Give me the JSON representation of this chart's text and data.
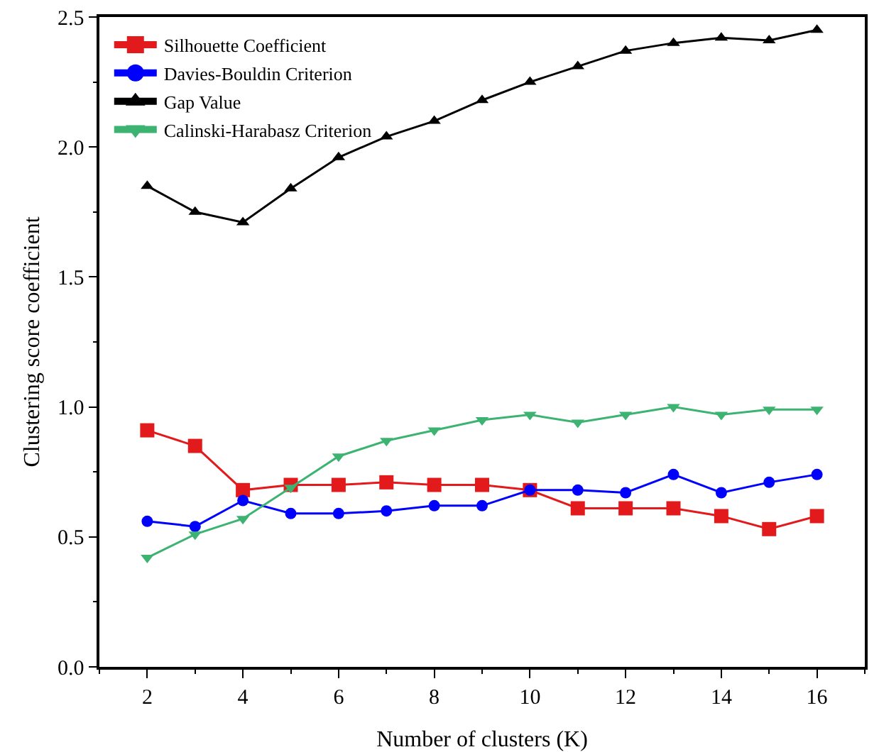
{
  "chart_data": {
    "type": "line",
    "xlabel": "Number of clusters (K)",
    "ylabel": "Clustering score coefficient",
    "x": [
      2,
      3,
      4,
      5,
      6,
      7,
      8,
      9,
      10,
      11,
      12,
      13,
      14,
      15,
      16
    ],
    "series": [
      {
        "name": "Silhouette Coefficient",
        "color": "#e31a1c",
        "marker": "square",
        "values": [
          0.91,
          0.85,
          0.68,
          0.7,
          0.7,
          0.71,
          0.7,
          0.7,
          0.68,
          0.61,
          0.61,
          0.61,
          0.58,
          0.53,
          0.58
        ]
      },
      {
        "name": "Davies-Bouldin Criterion",
        "color": "#0000ff",
        "marker": "circle",
        "values": [
          0.56,
          0.54,
          0.64,
          0.59,
          0.59,
          0.6,
          0.62,
          0.62,
          0.68,
          0.68,
          0.67,
          0.74,
          0.67,
          0.71,
          0.74
        ]
      },
      {
        "name": "Gap Value",
        "color": "#000000",
        "marker": "triangle",
        "values": [
          1.85,
          1.75,
          1.71,
          1.84,
          1.96,
          2.04,
          2.1,
          2.18,
          2.25,
          2.31,
          2.37,
          2.4,
          2.42,
          2.41,
          2.45
        ]
      },
      {
        "name": "Calinski-Harabasz Criterion",
        "color": "#3cb371",
        "marker": "triangle-down",
        "values": [
          0.42,
          0.51,
          0.57,
          0.69,
          0.81,
          0.87,
          0.91,
          0.95,
          0.97,
          0.94,
          0.97,
          1.0,
          0.97,
          0.99,
          0.99
        ]
      }
    ],
    "xlim": [
      1,
      17
    ],
    "xticks": [
      2,
      4,
      6,
      8,
      10,
      12,
      14,
      16
    ],
    "ylim": [
      0,
      2.5
    ],
    "yticks": [
      {
        "value": 0,
        "label": "0.0"
      },
      {
        "value": 0.5,
        "label": "0.5"
      },
      {
        "value": 1,
        "label": "1.0"
      },
      {
        "value": 1.5,
        "label": "1.5"
      },
      {
        "value": 2,
        "label": "2.0"
      },
      {
        "value": 2.5,
        "label": "2.5"
      }
    ],
    "grid": false,
    "legend": "top left",
    "line_style": "solid"
  }
}
